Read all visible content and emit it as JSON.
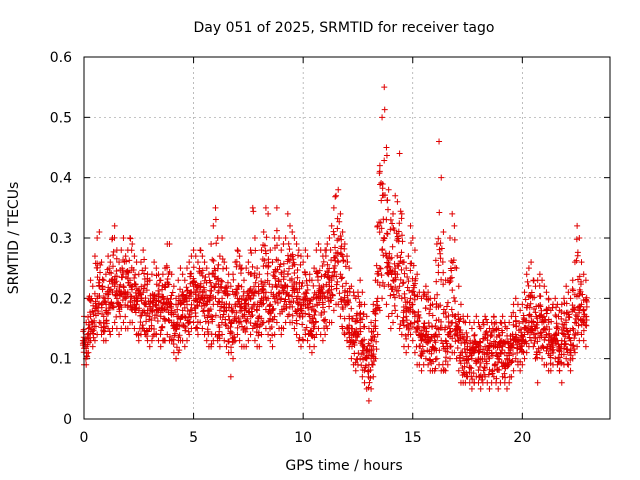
{
  "chart_data": {
    "type": "scatter",
    "title": "Day 051 of 2025, SRMTID for receiver tago",
    "xlabel": "GPS time / hours",
    "ylabel": "SRMTID / TECUs",
    "xlim": [
      0,
      24
    ],
    "ylim": [
      0,
      0.6
    ],
    "x_ticks": [
      0,
      5,
      10,
      15,
      20
    ],
    "x_tick_labels": [
      "0",
      "5",
      "10",
      "15",
      "20"
    ],
    "y_ticks": [
      0,
      0.1,
      0.2,
      0.3,
      0.4,
      0.5,
      0.6
    ],
    "y_tick_labels": [
      "0",
      "0.1",
      "0.2",
      "0.3",
      "0.4",
      "0.5",
      "0.6"
    ],
    "grid": true,
    "marker": "+",
    "color": "#e00000",
    "series": [
      {
        "name": "SRMTID",
        "x": [
          0.0,
          0.1,
          0.2,
          0.3,
          0.4,
          0.5,
          0.6,
          0.7,
          0.8,
          0.9,
          1.0,
          1.1,
          1.2,
          1.3,
          1.4,
          1.5,
          1.6,
          1.7,
          1.8,
          1.9,
          2.0,
          2.1,
          2.2,
          2.3,
          2.4,
          2.5,
          2.6,
          2.7,
          2.8,
          2.9,
          3.0,
          3.1,
          3.2,
          3.3,
          3.4,
          3.5,
          3.6,
          3.7,
          3.8,
          3.9,
          4.0,
          4.1,
          4.2,
          4.3,
          4.4,
          4.5,
          4.6,
          4.7,
          4.8,
          4.9,
          5.0,
          5.1,
          5.2,
          5.3,
          5.4,
          5.5,
          5.6,
          5.7,
          5.8,
          5.9,
          6.0,
          6.1,
          6.2,
          6.3,
          6.4,
          6.5,
          6.6,
          6.7,
          6.8,
          6.9,
          7.0,
          7.1,
          7.2,
          7.3,
          7.4,
          7.5,
          7.6,
          7.7,
          7.8,
          7.9,
          8.0,
          8.1,
          8.2,
          8.3,
          8.4,
          8.5,
          8.6,
          8.7,
          8.8,
          8.9,
          9.0,
          9.1,
          9.2,
          9.3,
          9.4,
          9.5,
          9.6,
          9.7,
          9.8,
          9.9,
          10.0,
          10.1,
          10.2,
          10.3,
          10.4,
          10.5,
          10.6,
          10.7,
          10.8,
          10.9,
          11.0,
          11.1,
          11.2,
          11.3,
          11.4,
          11.5,
          11.6,
          11.7,
          11.8,
          11.9,
          12.0,
          12.1,
          12.2,
          12.3,
          12.4,
          12.5,
          12.6,
          12.7,
          12.8,
          12.9,
          13.0,
          13.1,
          13.2,
          13.3,
          13.4,
          13.5,
          13.6,
          13.7,
          13.8,
          13.9,
          14.0,
          14.1,
          14.2,
          14.3,
          14.4,
          14.5,
          14.6,
          14.7,
          14.8,
          14.9,
          15.0,
          15.1,
          15.2,
          15.3,
          15.4,
          15.5,
          15.6,
          15.7,
          15.8,
          15.9,
          16.0,
          16.1,
          16.2,
          16.3,
          16.4,
          16.5,
          16.6,
          16.7,
          16.8,
          16.9,
          17.0,
          17.1,
          17.2,
          17.3,
          17.4,
          17.5,
          17.6,
          17.7,
          17.8,
          17.9,
          18.0,
          18.1,
          18.2,
          18.3,
          18.4,
          18.5,
          18.6,
          18.7,
          18.8,
          18.9,
          19.0,
          19.1,
          19.2,
          19.3,
          19.4,
          19.5,
          19.6,
          19.7,
          19.8,
          19.9,
          20.0,
          20.1,
          20.2,
          20.3,
          20.4,
          20.5,
          20.6,
          20.7,
          20.8,
          20.9,
          21.0,
          21.1,
          21.2,
          21.3,
          21.4,
          21.5,
          21.6,
          21.7,
          21.8,
          21.9,
          22.0,
          22.1,
          22.2,
          22.3,
          22.4,
          22.5,
          22.6,
          22.7,
          22.8,
          22.9
        ],
        "mid": [
          0.13,
          0.12,
          0.15,
          0.17,
          0.16,
          0.18,
          0.2,
          0.22,
          0.19,
          0.17,
          0.18,
          0.2,
          0.19,
          0.21,
          0.22,
          0.2,
          0.19,
          0.21,
          0.22,
          0.2,
          0.21,
          0.23,
          0.22,
          0.2,
          0.19,
          0.18,
          0.2,
          0.21,
          0.19,
          0.18,
          0.17,
          0.18,
          0.2,
          0.19,
          0.18,
          0.17,
          0.18,
          0.19,
          0.2,
          0.19,
          0.18,
          0.16,
          0.15,
          0.17,
          0.19,
          0.18,
          0.17,
          0.19,
          0.2,
          0.21,
          0.22,
          0.21,
          0.2,
          0.22,
          0.21,
          0.2,
          0.19,
          0.18,
          0.17,
          0.19,
          0.2,
          0.19,
          0.18,
          0.2,
          0.19,
          0.18,
          0.17,
          0.16,
          0.18,
          0.19,
          0.2,
          0.19,
          0.18,
          0.17,
          0.18,
          0.19,
          0.2,
          0.21,
          0.19,
          0.18,
          0.17,
          0.2,
          0.22,
          0.21,
          0.2,
          0.19,
          0.18,
          0.2,
          0.22,
          0.21,
          0.2,
          0.21,
          0.22,
          0.24,
          0.23,
          0.22,
          0.21,
          0.2,
          0.19,
          0.18,
          0.19,
          0.2,
          0.19,
          0.17,
          0.16,
          0.18,
          0.2,
          0.21,
          0.2,
          0.19,
          0.2,
          0.21,
          0.22,
          0.23,
          0.25,
          0.27,
          0.26,
          0.24,
          0.22,
          0.21,
          0.19,
          0.17,
          0.15,
          0.14,
          0.13,
          0.14,
          0.15,
          0.13,
          0.12,
          0.1,
          0.09,
          0.1,
          0.12,
          0.15,
          0.2,
          0.25,
          0.28,
          0.3,
          0.27,
          0.24,
          0.22,
          0.23,
          0.25,
          0.24,
          0.22,
          0.2,
          0.18,
          0.17,
          0.18,
          0.2,
          0.19,
          0.17,
          0.15,
          0.14,
          0.13,
          0.14,
          0.15,
          0.14,
          0.13,
          0.12,
          0.13,
          0.15,
          0.14,
          0.13,
          0.12,
          0.13,
          0.14,
          0.15,
          0.16,
          0.17,
          0.15,
          0.13,
          0.11,
          0.1,
          0.11,
          0.12,
          0.11,
          0.1,
          0.11,
          0.12,
          0.11,
          0.1,
          0.11,
          0.12,
          0.11,
          0.1,
          0.11,
          0.12,
          0.11,
          0.1,
          0.11,
          0.12,
          0.11,
          0.1,
          0.11,
          0.12,
          0.13,
          0.14,
          0.13,
          0.12,
          0.13,
          0.14,
          0.15,
          0.16,
          0.17,
          0.16,
          0.15,
          0.16,
          0.17,
          0.16,
          0.15,
          0.14,
          0.13,
          0.12,
          0.13,
          0.14,
          0.13,
          0.12,
          0.13,
          0.14,
          0.15,
          0.14,
          0.13,
          0.15,
          0.16,
          0.17,
          0.18,
          0.19,
          0.18,
          0.17
        ],
        "low": [
          0.09,
          0.09,
          0.11,
          0.13,
          0.12,
          0.13,
          0.14,
          0.16,
          0.14,
          0.13,
          0.13,
          0.15,
          0.14,
          0.15,
          0.16,
          0.15,
          0.14,
          0.15,
          0.16,
          0.15,
          0.15,
          0.16,
          0.16,
          0.15,
          0.14,
          0.13,
          0.14,
          0.15,
          0.14,
          0.13,
          0.12,
          0.13,
          0.14,
          0.14,
          0.13,
          0.12,
          0.13,
          0.13,
          0.14,
          0.13,
          0.13,
          0.11,
          0.1,
          0.11,
          0.13,
          0.13,
          0.12,
          0.13,
          0.14,
          0.15,
          0.16,
          0.15,
          0.14,
          0.16,
          0.15,
          0.14,
          0.13,
          0.12,
          0.12,
          0.13,
          0.14,
          0.13,
          0.12,
          0.14,
          0.13,
          0.12,
          0.11,
          0.07,
          0.1,
          0.13,
          0.14,
          0.13,
          0.12,
          0.12,
          0.12,
          0.13,
          0.14,
          0.15,
          0.13,
          0.12,
          0.12,
          0.14,
          0.16,
          0.15,
          0.14,
          0.13,
          0.12,
          0.14,
          0.16,
          0.15,
          0.14,
          0.15,
          0.16,
          0.17,
          0.16,
          0.16,
          0.15,
          0.14,
          0.13,
          0.12,
          0.13,
          0.14,
          0.13,
          0.12,
          0.11,
          0.12,
          0.14,
          0.15,
          0.14,
          0.13,
          0.14,
          0.15,
          0.16,
          0.16,
          0.18,
          0.19,
          0.19,
          0.17,
          0.15,
          0.14,
          0.13,
          0.12,
          0.1,
          0.09,
          0.08,
          0.09,
          0.1,
          0.07,
          0.06,
          0.05,
          0.03,
          0.05,
          0.07,
          0.1,
          0.14,
          0.18,
          0.2,
          0.22,
          0.19,
          0.17,
          0.15,
          0.16,
          0.18,
          0.17,
          0.15,
          0.14,
          0.12,
          0.11,
          0.12,
          0.14,
          0.13,
          0.11,
          0.09,
          0.09,
          0.08,
          0.09,
          0.1,
          0.09,
          0.08,
          0.08,
          0.08,
          0.1,
          0.09,
          0.08,
          0.08,
          0.08,
          0.09,
          0.1,
          0.11,
          0.11,
          0.1,
          0.08,
          0.06,
          0.06,
          0.06,
          0.07,
          0.06,
          0.05,
          0.06,
          0.07,
          0.06,
          0.05,
          0.06,
          0.07,
          0.06,
          0.05,
          0.06,
          0.07,
          0.06,
          0.05,
          0.06,
          0.07,
          0.06,
          0.05,
          0.06,
          0.07,
          0.08,
          0.1,
          0.09,
          0.08,
          0.09,
          0.1,
          0.11,
          0.12,
          0.13,
          0.12,
          0.1,
          0.06,
          0.11,
          0.1,
          0.09,
          0.09,
          0.08,
          0.08,
          0.09,
          0.1,
          0.09,
          0.08,
          0.06,
          0.09,
          0.1,
          0.09,
          0.08,
          0.1,
          0.11,
          0.12,
          0.13,
          0.14,
          0.13,
          0.12
        ],
        "high": [
          0.17,
          0.16,
          0.2,
          0.23,
          0.22,
          0.27,
          0.3,
          0.31,
          0.26,
          0.23,
          0.24,
          0.27,
          0.26,
          0.3,
          0.32,
          0.28,
          0.26,
          0.28,
          0.3,
          0.27,
          0.28,
          0.3,
          0.29,
          0.27,
          0.26,
          0.24,
          0.26,
          0.28,
          0.25,
          0.24,
          0.23,
          0.24,
          0.26,
          0.25,
          0.24,
          0.23,
          0.24,
          0.25,
          0.29,
          0.29,
          0.24,
          0.22,
          0.2,
          0.23,
          0.25,
          0.24,
          0.23,
          0.25,
          0.26,
          0.27,
          0.28,
          0.27,
          0.26,
          0.28,
          0.27,
          0.26,
          0.25,
          0.24,
          0.29,
          0.32,
          0.35,
          0.3,
          0.27,
          0.3,
          0.26,
          0.25,
          0.24,
          0.22,
          0.24,
          0.26,
          0.28,
          0.27,
          0.25,
          0.23,
          0.25,
          0.26,
          0.28,
          0.35,
          0.3,
          0.25,
          0.24,
          0.28,
          0.31,
          0.35,
          0.34,
          0.28,
          0.26,
          0.3,
          0.35,
          0.3,
          0.28,
          0.29,
          0.3,
          0.34,
          0.32,
          0.31,
          0.3,
          0.29,
          0.28,
          0.27,
          0.26,
          0.28,
          0.27,
          0.24,
          0.23,
          0.25,
          0.28,
          0.29,
          0.28,
          0.27,
          0.28,
          0.29,
          0.3,
          0.32,
          0.35,
          0.37,
          0.38,
          0.34,
          0.31,
          0.29,
          0.27,
          0.25,
          0.22,
          0.21,
          0.2,
          0.21,
          0.23,
          0.21,
          0.19,
          0.17,
          0.15,
          0.16,
          0.19,
          0.23,
          0.32,
          0.42,
          0.5,
          0.55,
          0.45,
          0.38,
          0.33,
          0.34,
          0.37,
          0.36,
          0.44,
          0.34,
          0.26,
          0.25,
          0.27,
          0.32,
          0.3,
          0.28,
          0.24,
          0.21,
          0.2,
          0.21,
          0.22,
          0.21,
          0.2,
          0.19,
          0.2,
          0.29,
          0.46,
          0.4,
          0.31,
          0.23,
          0.23,
          0.3,
          0.34,
          0.32,
          0.25,
          0.22,
          0.19,
          0.17,
          0.16,
          0.17,
          0.16,
          0.15,
          0.16,
          0.17,
          0.16,
          0.15,
          0.16,
          0.17,
          0.16,
          0.15,
          0.16,
          0.17,
          0.16,
          0.15,
          0.16,
          0.17,
          0.16,
          0.15,
          0.16,
          0.17,
          0.19,
          0.2,
          0.19,
          0.18,
          0.19,
          0.21,
          0.24,
          0.25,
          0.26,
          0.23,
          0.22,
          0.23,
          0.24,
          0.23,
          0.22,
          0.21,
          0.2,
          0.18,
          0.19,
          0.2,
          0.19,
          0.18,
          0.19,
          0.2,
          0.22,
          0.21,
          0.2,
          0.23,
          0.26,
          0.32,
          0.3,
          0.26,
          0.24,
          0.23
        ]
      }
    ]
  }
}
